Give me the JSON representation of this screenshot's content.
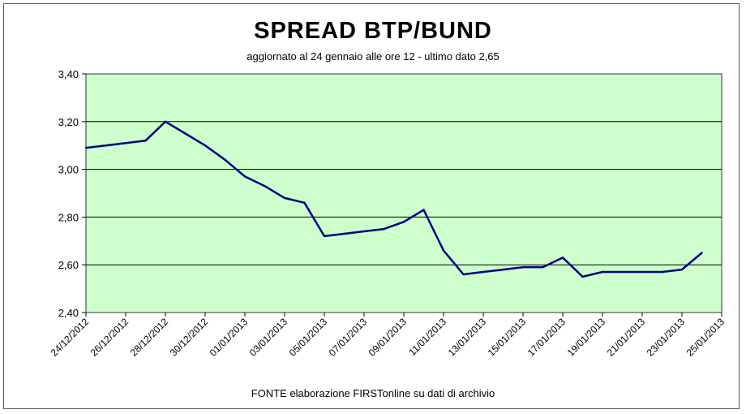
{
  "chart_data": {
    "type": "line",
    "title": "SPREAD  BTP/BUND",
    "subtitle": "aggiornato al 24 gennaio alle ore 12 - ultimo dato 2,65",
    "source": "FONTE elaborazione FIRSTonline su dati di archivio",
    "xlabel": "",
    "ylabel": "",
    "ylim": [
      2.4,
      3.4
    ],
    "y_ticks": [
      "2,40",
      "2,60",
      "2,80",
      "3,00",
      "3,20",
      "3,40"
    ],
    "x_ticks": [
      "24/12/2012",
      "26/12/2012",
      "28/12/2012",
      "30/12/2012",
      "01/01/2013",
      "03/01/2013",
      "05/01/2013",
      "07/01/2013",
      "09/01/2013",
      "11/01/2013",
      "13/01/2013",
      "15/01/2013",
      "17/01/2013",
      "19/01/2013",
      "21/01/2013",
      "23/01/2013",
      "25/01/2013"
    ],
    "grid": true,
    "background_color": "#ccffcc",
    "line_color": "#000080",
    "series": [
      {
        "x": [
          "24/12/2012",
          "25/12/2012",
          "26/12/2012",
          "27/12/2012",
          "28/12/2012",
          "29/12/2012",
          "30/12/2012",
          "31/12/2012",
          "01/01/2013",
          "02/01/2013",
          "03/01/2013",
          "04/01/2013",
          "05/01/2013",
          "06/01/2013",
          "07/01/2013",
          "08/01/2013",
          "09/01/2013",
          "10/01/2013",
          "11/01/2013",
          "12/01/2013",
          "13/01/2013",
          "14/01/2013",
          "15/01/2013",
          "16/01/2013",
          "17/01/2013",
          "18/01/2013",
          "19/01/2013",
          "20/01/2013",
          "21/01/2013",
          "22/01/2013",
          "23/01/2013",
          "24/01/2013"
        ],
        "values": [
          3.09,
          3.1,
          3.11,
          3.12,
          3.2,
          3.15,
          3.1,
          3.04,
          2.97,
          2.93,
          2.88,
          2.86,
          2.72,
          2.73,
          2.74,
          2.75,
          2.78,
          2.83,
          2.66,
          2.56,
          2.57,
          2.58,
          2.59,
          2.59,
          2.63,
          2.55,
          2.57,
          2.57,
          2.57,
          2.57,
          2.58,
          2.65
        ]
      }
    ]
  }
}
